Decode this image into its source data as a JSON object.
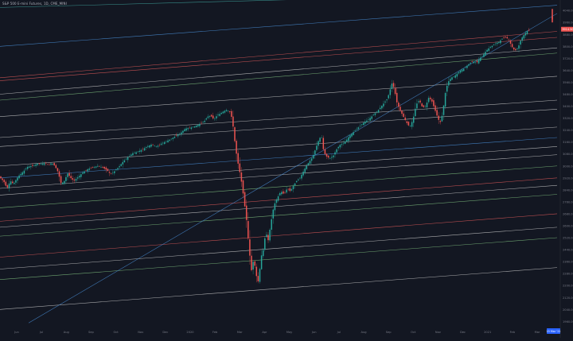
{
  "symbol": {
    "title": "S&P 500 E-mini Futures, 1D, CME_MINI"
  },
  "colors": {
    "background": "#131722",
    "up": "#26a69a",
    "down": "#ef5350",
    "axis_text": "#787b86",
    "last_price_bg": "#ef5350",
    "date_tag_bg": "#2962ff",
    "channel_blue": "#4a90d9",
    "channel_red": "#e05a5a",
    "channel_green": "#7fbf7f",
    "channel_white": "#c9c9c9",
    "channel_teal": "#3fa7a0"
  },
  "chart_data": {
    "type": "candlestick",
    "title": "",
    "x_tick_labels": [
      "Jun",
      "Jul",
      "Aug",
      "Sep",
      "Oct",
      "Nov",
      "Dec",
      "2020",
      "Feb",
      "Mar",
      "Apr",
      "May",
      "Jun",
      "Jul",
      "Aug",
      "Sep",
      "Oct",
      "Nov",
      "Dec",
      "2021",
      "Feb",
      "Mar"
    ],
    "y_tick_labels": [
      "4040.00",
      "3960.00",
      "3880.00",
      "3800.00",
      "3720.00",
      "3640.00",
      "3560.00",
      "3480.00",
      "3400.00",
      "3320.00",
      "3240.00",
      "3160.00",
      "3080.00",
      "3000.00",
      "2920.00",
      "2840.00",
      "2760.00",
      "2680.00",
      "2600.00",
      "2520.00",
      "2440.00",
      "2360.00",
      "2280.00",
      "2200.00",
      "2120.00",
      "2040.00",
      "1960.00"
    ],
    "last_price": "3914.50",
    "date_tag": "15 Mar '21",
    "ylim": [
      1930,
      4110
    ],
    "close_path": [
      [
        0,
        2930
      ],
      [
        6,
        2895
      ],
      [
        10,
        2850
      ],
      [
        14,
        2900
      ],
      [
        18,
        2880
      ],
      [
        24,
        2930
      ],
      [
        30,
        2960
      ],
      [
        36,
        2995
      ],
      [
        42,
        3000
      ],
      [
        48,
        3015
      ],
      [
        54,
        3015
      ],
      [
        58,
        3020
      ],
      [
        62,
        3005
      ],
      [
        66,
        3020
      ],
      [
        70,
        3000
      ],
      [
        74,
        2960
      ],
      [
        78,
        2880
      ],
      [
        82,
        2900
      ],
      [
        86,
        2950
      ],
      [
        90,
        2920
      ],
      [
        94,
        2900
      ],
      [
        100,
        2930
      ],
      [
        106,
        2960
      ],
      [
        112,
        2980
      ],
      [
        118,
        2990
      ],
      [
        124,
        3000
      ],
      [
        130,
        2990
      ],
      [
        136,
        2970
      ],
      [
        140,
        2945
      ],
      [
        144,
        2960
      ],
      [
        150,
        2990
      ],
      [
        156,
        3030
      ],
      [
        162,
        3060
      ],
      [
        168,
        3085
      ],
      [
        174,
        3095
      ],
      [
        180,
        3110
      ],
      [
        186,
        3130
      ],
      [
        192,
        3145
      ],
      [
        198,
        3130
      ],
      [
        204,
        3150
      ],
      [
        210,
        3165
      ],
      [
        216,
        3180
      ],
      [
        222,
        3200
      ],
      [
        228,
        3220
      ],
      [
        234,
        3250
      ],
      [
        240,
        3255
      ],
      [
        246,
        3265
      ],
      [
        252,
        3280
      ],
      [
        258,
        3300
      ],
      [
        262,
        3330
      ],
      [
        266,
        3335
      ],
      [
        270,
        3310
      ],
      [
        274,
        3340
      ],
      [
        278,
        3350
      ],
      [
        282,
        3365
      ],
      [
        286,
        3375
      ],
      [
        290,
        3360
      ],
      [
        293,
        3310
      ],
      [
        296,
        3170
      ],
      [
        299,
        3050
      ],
      [
        302,
        2970
      ],
      [
        305,
        2880
      ],
      [
        308,
        2760
      ],
      [
        311,
        2630
      ],
      [
        314,
        2450
      ],
      [
        317,
        2300
      ],
      [
        320,
        2380
      ],
      [
        323,
        2270
      ],
      [
        326,
        2220
      ],
      [
        329,
        2390
      ],
      [
        332,
        2440
      ],
      [
        335,
        2560
      ],
      [
        338,
        2500
      ],
      [
        341,
        2600
      ],
      [
        344,
        2700
      ],
      [
        347,
        2760
      ],
      [
        350,
        2790
      ],
      [
        354,
        2830
      ],
      [
        358,
        2810
      ],
      [
        362,
        2850
      ],
      [
        366,
        2830
      ],
      [
        370,
        2870
      ],
      [
        374,
        2900
      ],
      [
        378,
        2920
      ],
      [
        382,
        2960
      ],
      [
        386,
        3000
      ],
      [
        390,
        3030
      ],
      [
        394,
        3060
      ],
      [
        398,
        3120
      ],
      [
        402,
        3180
      ],
      [
        405,
        3200
      ],
      [
        408,
        3090
      ],
      [
        412,
        3060
      ],
      [
        416,
        3050
      ],
      [
        420,
        3070
      ],
      [
        424,
        3110
      ],
      [
        428,
        3140
      ],
      [
        432,
        3150
      ],
      [
        436,
        3170
      ],
      [
        440,
        3200
      ],
      [
        446,
        3230
      ],
      [
        452,
        3260
      ],
      [
        458,
        3290
      ],
      [
        464,
        3310
      ],
      [
        470,
        3340
      ],
      [
        476,
        3370
      ],
      [
        482,
        3410
      ],
      [
        488,
        3450
      ],
      [
        494,
        3560
      ],
      [
        497,
        3500
      ],
      [
        500,
        3420
      ],
      [
        504,
        3370
      ],
      [
        508,
        3330
      ],
      [
        512,
        3290
      ],
      [
        516,
        3260
      ],
      [
        520,
        3310
      ],
      [
        524,
        3410
      ],
      [
        528,
        3440
      ],
      [
        532,
        3390
      ],
      [
        536,
        3400
      ],
      [
        540,
        3460
      ],
      [
        544,
        3430
      ],
      [
        548,
        3370
      ],
      [
        552,
        3310
      ],
      [
        555,
        3290
      ],
      [
        558,
        3380
      ],
      [
        561,
        3500
      ],
      [
        564,
        3560
      ],
      [
        568,
        3590
      ],
      [
        572,
        3600
      ],
      [
        576,
        3620
      ],
      [
        580,
        3640
      ],
      [
        584,
        3650
      ],
      [
        588,
        3670
      ],
      [
        592,
        3690
      ],
      [
        596,
        3700
      ],
      [
        600,
        3690
      ],
      [
        604,
        3720
      ],
      [
        608,
        3740
      ],
      [
        612,
        3770
      ],
      [
        616,
        3790
      ],
      [
        620,
        3805
      ],
      [
        624,
        3820
      ],
      [
        628,
        3830
      ],
      [
        632,
        3850
      ],
      [
        636,
        3860
      ],
      [
        640,
        3850
      ],
      [
        644,
        3800
      ],
      [
        648,
        3770
      ],
      [
        652,
        3790
      ],
      [
        656,
        3850
      ],
      [
        660,
        3880
      ],
      [
        664,
        3905
      ]
    ],
    "last_candles": [
      [
        694,
        4050,
        3980
      ],
      [
        694,
        4000,
        3960
      ]
    ],
    "channels": [
      {
        "color": "teal",
        "x1": 0,
        "y1": 4060,
        "x2": 700,
        "y2": 4160
      },
      {
        "color": "blue",
        "x1": 0,
        "y1": 3800,
        "x2": 700,
        "y2": 4075
      },
      {
        "color": "red",
        "x1": 0,
        "y1": 3590,
        "x2": 700,
        "y2": 3900
      },
      {
        "color": "red",
        "x1": 0,
        "y1": 3570,
        "x2": 700,
        "y2": 3860
      },
      {
        "color": "white",
        "x1": 0,
        "y1": 3480,
        "x2": 700,
        "y2": 3790
      },
      {
        "color": "green",
        "x1": 0,
        "y1": 3440,
        "x2": 700,
        "y2": 3755
      },
      {
        "color": "white",
        "x1": 0,
        "y1": 3330,
        "x2": 700,
        "y2": 3600
      },
      {
        "color": "white",
        "x1": 0,
        "y1": 3190,
        "x2": 700,
        "y2": 3440
      },
      {
        "color": "white",
        "x1": 0,
        "y1": 3130,
        "x2": 700,
        "y2": 3380
      },
      {
        "color": "white",
        "x1": 0,
        "y1": 3000,
        "x2": 700,
        "y2": 3260
      },
      {
        "color": "blue",
        "x1": 0,
        "y1": 2920,
        "x2": 700,
        "y2": 3190
      },
      {
        "color": "white",
        "x1": 0,
        "y1": 2850,
        "x2": 700,
        "y2": 3130
      },
      {
        "color": "white",
        "x1": 0,
        "y1": 2805,
        "x2": 700,
        "y2": 3075
      },
      {
        "color": "green",
        "x1": 0,
        "y1": 2720,
        "x2": 700,
        "y2": 3000
      },
      {
        "color": "red",
        "x1": 0,
        "y1": 2630,
        "x2": 700,
        "y2": 2920
      },
      {
        "color": "white",
        "x1": 0,
        "y1": 2590,
        "x2": 700,
        "y2": 2870
      },
      {
        "color": "green",
        "x1": 0,
        "y1": 2530,
        "x2": 700,
        "y2": 2810
      },
      {
        "color": "red",
        "x1": 0,
        "y1": 2390,
        "x2": 700,
        "y2": 2680
      },
      {
        "color": "white",
        "x1": 0,
        "y1": 2310,
        "x2": 700,
        "y2": 2590
      },
      {
        "color": "green",
        "x1": 0,
        "y1": 2240,
        "x2": 700,
        "y2": 2520
      },
      {
        "color": "white",
        "x1": 0,
        "y1": 2040,
        "x2": 700,
        "y2": 2320
      },
      {
        "color": "blue",
        "x1": 36,
        "y1": 1950,
        "x2": 700,
        "y2": 4020
      }
    ]
  }
}
